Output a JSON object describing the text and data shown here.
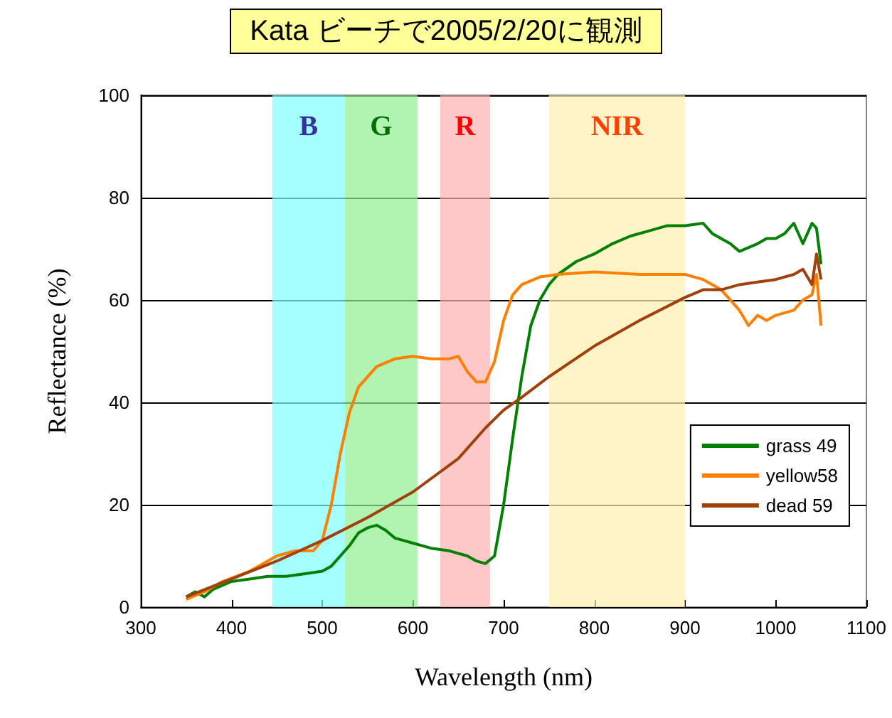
{
  "chart_data": {
    "type": "line",
    "title": "Kata ビーチで2005/2/20に観測",
    "xlabel": "Wavelength (nm)",
    "ylabel": "Reflectance (%)",
    "xlim": [
      300,
      1100
    ],
    "xticks": [
      300,
      400,
      500,
      600,
      700,
      800,
      900,
      1000,
      1100
    ],
    "ylim": [
      0,
      100
    ],
    "yticks": [
      0,
      20,
      40,
      60,
      80,
      100
    ],
    "grid": "y",
    "legend": "bottom right",
    "marker": "none",
    "line_style": "solid",
    "bands": [
      {
        "axis": "x",
        "from": 445,
        "to": 525,
        "label": "B",
        "color": "#80ffff"
      },
      {
        "axis": "x",
        "from": 525,
        "to": 605,
        "label": "G",
        "color": "#90ee90"
      },
      {
        "axis": "x",
        "from": 630,
        "to": 685,
        "label": "R",
        "color": "#ffb0b0"
      },
      {
        "axis": "x",
        "from": 750,
        "to": 900,
        "label": "NIR",
        "color": "#fff0b0"
      }
    ],
    "series": [
      {
        "name": "grass 49",
        "color": "#008000",
        "x": [
          350,
          360,
          370,
          380,
          400,
          420,
          440,
          460,
          480,
          500,
          510,
          520,
          530,
          540,
          550,
          560,
          570,
          580,
          600,
          620,
          640,
          660,
          670,
          680,
          690,
          700,
          710,
          720,
          730,
          740,
          750,
          760,
          780,
          800,
          820,
          840,
          860,
          880,
          900,
          920,
          930,
          950,
          960,
          980,
          990,
          1000,
          1010,
          1020,
          1030,
          1040,
          1045,
          1050
        ],
        "values": [
          2,
          3,
          2,
          3.5,
          5,
          5.5,
          6,
          6,
          6.5,
          7,
          8,
          10,
          12,
          14.5,
          15.5,
          16,
          15,
          13.5,
          12.5,
          11.5,
          11,
          10,
          9,
          8.5,
          10,
          20,
          33,
          45,
          55,
          60,
          63,
          65,
          67.5,
          69,
          71,
          72.5,
          73.5,
          74.5,
          74.5,
          75,
          73,
          71,
          69.5,
          71,
          72,
          72,
          73,
          75,
          71,
          75,
          74,
          67
        ]
      },
      {
        "name": "yellow58",
        "color": "#ff7f00",
        "x": [
          350,
          370,
          390,
          420,
          450,
          470,
          490,
          500,
          510,
          520,
          530,
          540,
          560,
          580,
          600,
          620,
          640,
          650,
          660,
          670,
          680,
          690,
          700,
          710,
          720,
          740,
          760,
          800,
          850,
          900,
          920,
          940,
          960,
          970,
          980,
          990,
          1000,
          1020,
          1030,
          1040,
          1045,
          1050
        ],
        "values": [
          1.5,
          3,
          5,
          7,
          10,
          11,
          11,
          13,
          20,
          30,
          38,
          43,
          47,
          48.5,
          49,
          48.5,
          48.5,
          49,
          46,
          44,
          44,
          48,
          56,
          61,
          63,
          64.5,
          65,
          65.5,
          65,
          65,
          64,
          62,
          58,
          55,
          57,
          56,
          57,
          58,
          60,
          61,
          65,
          55
        ]
      },
      {
        "name": "dead 59",
        "color": "#a0400a",
        "x": [
          350,
          400,
          450,
          500,
          550,
          600,
          650,
          680,
          700,
          720,
          750,
          800,
          850,
          900,
          920,
          940,
          960,
          980,
          1000,
          1020,
          1030,
          1040,
          1045,
          1050
        ],
        "values": [
          2,
          5.5,
          9,
          13,
          17.5,
          22.5,
          29,
          35,
          38.5,
          41,
          45,
          51,
          56,
          60.5,
          62,
          62,
          63,
          63.5,
          64,
          65,
          66,
          63,
          69,
          64
        ]
      }
    ]
  }
}
